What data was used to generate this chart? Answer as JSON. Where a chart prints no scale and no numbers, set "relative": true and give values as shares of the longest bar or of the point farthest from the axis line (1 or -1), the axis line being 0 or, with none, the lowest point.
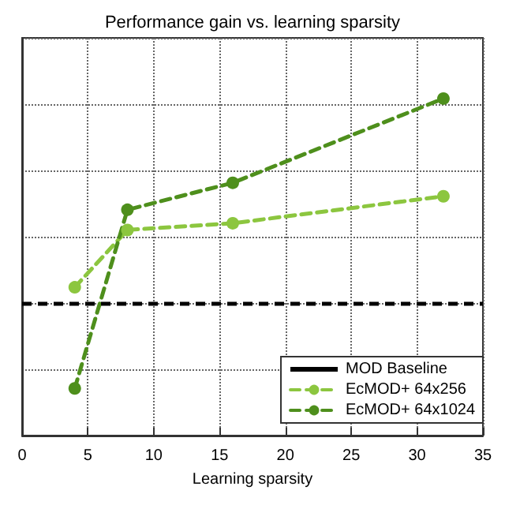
{
  "chart_data": {
    "type": "line",
    "title": "Performance gain vs. learning sparsity",
    "xlabel": "Learning sparsity",
    "relative": true,
    "x": [
      4,
      8,
      16,
      32
    ],
    "xlim": [
      0,
      35
    ],
    "xticks": [
      0,
      5,
      10,
      15,
      20,
      25,
      30,
      35
    ],
    "series": [
      {
        "name": "EcMOD+ 64x256",
        "color": "#8cc63f",
        "values": [
          0.44,
          0.61,
          0.63,
          0.71
        ]
      },
      {
        "name": "EcMOD+ 64x1024",
        "color": "#4e8f1c",
        "values": [
          0.14,
          0.67,
          0.75,
          1
        ]
      }
    ],
    "ref_lines": [
      {
        "axis": "y",
        "value": 0.39,
        "label": "MOD Baseline",
        "color": "#000000",
        "line_style": "dashed"
      }
    ],
    "grid": true,
    "legend": "bottom right",
    "marker": "circle",
    "line_style": "dashed"
  }
}
